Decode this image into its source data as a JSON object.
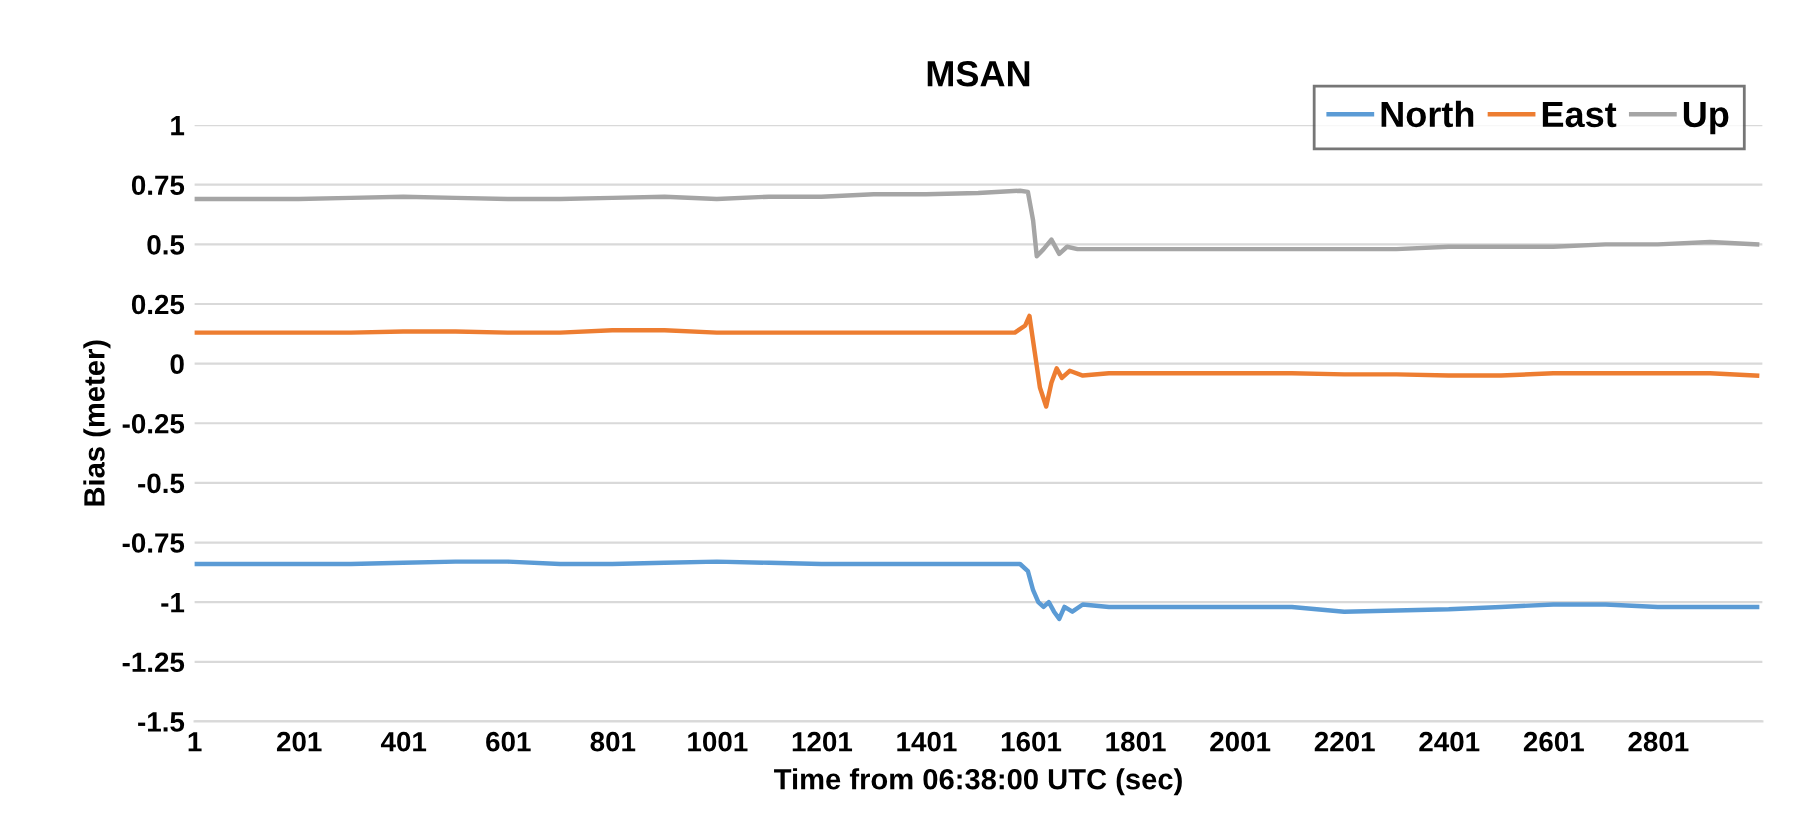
{
  "chart_data": {
    "type": "line",
    "title": "MSAN",
    "xlabel": "Time from 06:38:00 UTC (sec)",
    "ylabel": "Bias (meter)",
    "xlim": [
      1,
      3000
    ],
    "xticks": [
      1,
      201,
      401,
      601,
      801,
      1001,
      1201,
      1401,
      1601,
      1801,
      2001,
      2201,
      2401,
      2601,
      2801
    ],
    "ylim": [
      -1.5,
      1
    ],
    "yticks": [
      -1.5,
      -1.25,
      -1,
      -0.75,
      -0.5,
      -0.25,
      0,
      0.25,
      0.5,
      0.75,
      1
    ],
    "grid": "y",
    "legend": "top right",
    "series": [
      {
        "name": "North",
        "color": "#5b9bd5",
        "x": [
          1,
          100,
          200,
          300,
          400,
          500,
          600,
          700,
          800,
          900,
          1000,
          1100,
          1200,
          1300,
          1400,
          1500,
          1580,
          1595,
          1605,
          1615,
          1625,
          1635,
          1645,
          1655,
          1665,
          1680,
          1700,
          1750,
          1800,
          1900,
          2000,
          2100,
          2200,
          2300,
          2400,
          2500,
          2600,
          2700,
          2800,
          2900,
          2990
        ],
        "values": [
          -0.84,
          -0.84,
          -0.84,
          -0.84,
          -0.835,
          -0.83,
          -0.83,
          -0.84,
          -0.84,
          -0.835,
          -0.83,
          -0.835,
          -0.84,
          -0.84,
          -0.84,
          -0.84,
          -0.84,
          -0.87,
          -0.95,
          -1.0,
          -1.02,
          -1.0,
          -1.04,
          -1.07,
          -1.02,
          -1.04,
          -1.01,
          -1.02,
          -1.02,
          -1.02,
          -1.02,
          -1.02,
          -1.04,
          -1.035,
          -1.03,
          -1.02,
          -1.01,
          -1.01,
          -1.02,
          -1.02,
          -1.02
        ]
      },
      {
        "name": "East",
        "color": "#ed7d31",
        "x": [
          1,
          100,
          200,
          300,
          400,
          500,
          600,
          700,
          800,
          900,
          1000,
          1100,
          1200,
          1300,
          1400,
          1500,
          1570,
          1590,
          1598,
          1608,
          1618,
          1630,
          1640,
          1650,
          1660,
          1675,
          1700,
          1750,
          1800,
          1900,
          2000,
          2100,
          2200,
          2300,
          2400,
          2500,
          2600,
          2700,
          2800,
          2900,
          2990
        ],
        "values": [
          0.13,
          0.13,
          0.13,
          0.13,
          0.135,
          0.135,
          0.13,
          0.13,
          0.14,
          0.14,
          0.13,
          0.13,
          0.13,
          0.13,
          0.13,
          0.13,
          0.13,
          0.16,
          0.2,
          0.05,
          -0.1,
          -0.18,
          -0.08,
          -0.02,
          -0.06,
          -0.03,
          -0.05,
          -0.04,
          -0.04,
          -0.04,
          -0.04,
          -0.04,
          -0.045,
          -0.045,
          -0.05,
          -0.05,
          -0.04,
          -0.04,
          -0.04,
          -0.04,
          -0.05
        ]
      },
      {
        "name": "Up",
        "color": "#a5a5a5",
        "x": [
          1,
          100,
          200,
          300,
          400,
          500,
          600,
          700,
          800,
          900,
          1000,
          1100,
          1200,
          1300,
          1400,
          1500,
          1580,
          1595,
          1605,
          1612,
          1625,
          1640,
          1655,
          1670,
          1690,
          1720,
          1800,
          1900,
          2000,
          2100,
          2200,
          2300,
          2400,
          2500,
          2600,
          2700,
          2800,
          2900,
          2990
        ],
        "values": [
          0.69,
          0.69,
          0.69,
          0.695,
          0.7,
          0.695,
          0.69,
          0.69,
          0.695,
          0.7,
          0.69,
          0.7,
          0.7,
          0.71,
          0.71,
          0.715,
          0.725,
          0.72,
          0.6,
          0.45,
          0.48,
          0.52,
          0.46,
          0.49,
          0.48,
          0.48,
          0.48,
          0.48,
          0.48,
          0.48,
          0.48,
          0.48,
          0.49,
          0.49,
          0.49,
          0.5,
          0.5,
          0.51,
          0.5
        ]
      }
    ]
  }
}
